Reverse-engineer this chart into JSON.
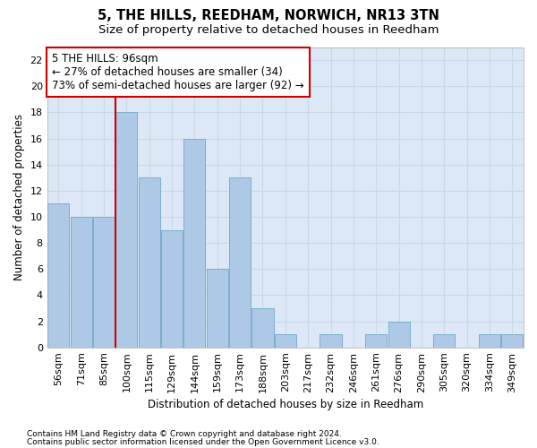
{
  "title": "5, THE HILLS, REEDHAM, NORWICH, NR13 3TN",
  "subtitle": "Size of property relative to detached houses in Reedham",
  "xlabel": "Distribution of detached houses by size in Reedham",
  "ylabel": "Number of detached properties",
  "footnote1": "Contains HM Land Registry data © Crown copyright and database right 2024.",
  "footnote2": "Contains public sector information licensed under the Open Government Licence v3.0.",
  "categories": [
    "56sqm",
    "71sqm",
    "85sqm",
    "100sqm",
    "115sqm",
    "129sqm",
    "144sqm",
    "159sqm",
    "173sqm",
    "188sqm",
    "203sqm",
    "217sqm",
    "232sqm",
    "246sqm",
    "261sqm",
    "276sqm",
    "290sqm",
    "305sqm",
    "320sqm",
    "334sqm",
    "349sqm"
  ],
  "values": [
    11,
    10,
    10,
    18,
    13,
    9,
    16,
    6,
    13,
    3,
    1,
    0,
    1,
    0,
    1,
    2,
    0,
    1,
    0,
    1,
    1
  ],
  "bar_color": "#aec9e5",
  "bar_edge_color": "#7aaece",
  "grid_color": "#c8d8ea",
  "background_color": "#dce8f5",
  "annotation_box_edgecolor": "#cc0000",
  "annotation_text_line1": "5 THE HILLS: 96sqm",
  "annotation_text_line2": "← 27% of detached houses are smaller (34)",
  "annotation_text_line3": "73% of semi-detached houses are larger (92) →",
  "red_line_x": 3.5,
  "ylim": [
    0,
    23
  ],
  "yticks": [
    0,
    2,
    4,
    6,
    8,
    10,
    12,
    14,
    16,
    18,
    20,
    22
  ],
  "title_fontsize": 10.5,
  "subtitle_fontsize": 9.5,
  "axis_label_fontsize": 8.5,
  "tick_fontsize": 8,
  "annotation_fontsize": 8.5,
  "footnote_fontsize": 6.5
}
